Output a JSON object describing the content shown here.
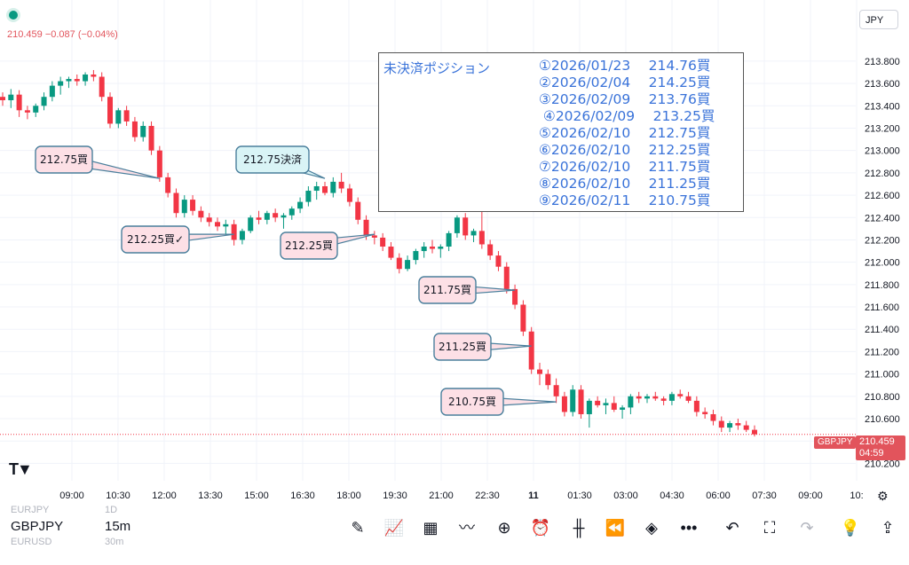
{
  "header": {
    "legend": "210.459 −0.087 (−0.04%)",
    "currency": "JPY"
  },
  "price_tag": {
    "symbol": "GBPJPY",
    "price": "210.459",
    "countdown": "04:59"
  },
  "positions_box": {
    "title": "未決済ポジション",
    "rows": [
      "①2026/01/23　 214.76買",
      "②2026/02/04　 214.25買",
      "③2026/02/09　 213.76買",
      " ④2026/02/09　 213.25買",
      "⑤2026/02/10　 212.75買",
      "⑥2026/02/10　 212.25買",
      "⑦2026/02/10　 211.75買",
      "⑧2026/02/10　 211.25買",
      "⑨2026/02/11　 210.75買"
    ]
  },
  "bottom_bar": {
    "rows": [
      {
        "symbol": "EURJPY",
        "interval": "1D",
        "faint": true
      },
      {
        "symbol": "GBPJPY",
        "interval": "15m",
        "faint": false
      },
      {
        "symbol": "EURUSD",
        "interval": "30m",
        "faint": true
      }
    ],
    "toolbar_icons": [
      "pen-icon",
      "indicators-icon",
      "templates-icon",
      "compare-icon",
      "plus-icon",
      "alert-icon",
      "candles-icon",
      "replay-icon",
      "layers-icon",
      "more-icon",
      "undo-icon",
      "fullscreen-icon",
      "redo-icon",
      "lightbulb-icon",
      "share-icon"
    ]
  },
  "chart_data": {
    "type": "candlestick",
    "symbol": "GBPJPY",
    "timeframe": "15m",
    "y_ticks": [
      "213.800",
      "213.600",
      "213.400",
      "213.200",
      "213.000",
      "212.800",
      "212.600",
      "212.400",
      "212.200",
      "212.000",
      "211.800",
      "211.600",
      "211.400",
      "211.200",
      "211.000",
      "210.800",
      "210.600",
      "210.400",
      "210.200"
    ],
    "x_ticks": [
      "09:00",
      "10:30",
      "12:00",
      "13:30",
      "15:00",
      "16:30",
      "18:00",
      "19:30",
      "21:00",
      "22:30",
      "11",
      "01:30",
      "03:00",
      "04:30",
      "06:00",
      "07:30",
      "09:00",
      "10:"
    ],
    "ylim": [
      210.1,
      213.95
    ],
    "current_price": 210.459,
    "up_color": "#089981",
    "down_color": "#f23645",
    "candles": [
      [
        213.48,
        213.52,
        213.4,
        213.45
      ],
      [
        213.45,
        213.55,
        213.38,
        213.5
      ],
      [
        213.5,
        213.54,
        213.3,
        213.36
      ],
      [
        213.36,
        213.4,
        213.28,
        213.34
      ],
      [
        213.34,
        213.42,
        213.3,
        213.4
      ],
      [
        213.4,
        213.52,
        213.36,
        213.48
      ],
      [
        213.48,
        213.62,
        213.44,
        213.58
      ],
      [
        213.58,
        213.66,
        213.5,
        213.62
      ],
      [
        213.62,
        213.66,
        213.56,
        213.64
      ],
      [
        213.64,
        213.68,
        213.58,
        213.62
      ],
      [
        213.62,
        213.7,
        213.58,
        213.68
      ],
      [
        213.68,
        213.72,
        213.62,
        213.66
      ],
      [
        213.66,
        213.7,
        213.44,
        213.48
      ],
      [
        213.48,
        213.52,
        213.2,
        213.24
      ],
      [
        213.24,
        213.38,
        213.2,
        213.36
      ],
      [
        213.36,
        213.4,
        213.22,
        213.26
      ],
      [
        213.26,
        213.3,
        213.08,
        213.12
      ],
      [
        213.12,
        213.26,
        213.08,
        213.22
      ],
      [
        213.22,
        213.26,
        212.96,
        213.0
      ],
      [
        213.0,
        213.04,
        212.72,
        212.76
      ],
      [
        212.76,
        212.8,
        212.58,
        212.62
      ],
      [
        212.62,
        212.66,
        212.4,
        212.44
      ],
      [
        212.44,
        212.6,
        212.4,
        212.56
      ],
      [
        212.56,
        212.6,
        212.42,
        212.46
      ],
      [
        212.46,
        212.5,
        212.36,
        212.4
      ],
      [
        212.4,
        212.44,
        212.32,
        212.36
      ],
      [
        212.36,
        212.4,
        212.28,
        212.32
      ],
      [
        212.32,
        212.38,
        212.24,
        212.34
      ],
      [
        212.34,
        212.38,
        212.15,
        212.2
      ],
      [
        212.2,
        212.3,
        212.16,
        212.28
      ],
      [
        212.28,
        212.42,
        212.26,
        212.4
      ],
      [
        212.4,
        212.46,
        212.34,
        212.38
      ],
      [
        212.38,
        212.46,
        212.34,
        212.44
      ],
      [
        212.44,
        212.48,
        212.36,
        212.4
      ],
      [
        212.4,
        212.44,
        212.3,
        212.42
      ],
      [
        212.42,
        212.5,
        212.38,
        212.48
      ],
      [
        212.48,
        212.58,
        212.44,
        212.54
      ],
      [
        212.54,
        212.68,
        212.5,
        212.64
      ],
      [
        212.64,
        212.72,
        212.56,
        212.68
      ],
      [
        212.68,
        212.72,
        212.6,
        212.62
      ],
      [
        212.62,
        212.76,
        212.58,
        212.72
      ],
      [
        212.72,
        212.8,
        212.62,
        212.66
      ],
      [
        212.66,
        212.7,
        212.5,
        212.54
      ],
      [
        212.54,
        212.58,
        212.34,
        212.38
      ],
      [
        212.38,
        212.42,
        212.2,
        212.24
      ],
      [
        212.24,
        212.28,
        212.16,
        212.22
      ],
      [
        212.22,
        212.26,
        212.1,
        212.14
      ],
      [
        212.14,
        212.18,
        212.02,
        212.04
      ],
      [
        212.04,
        212.08,
        211.9,
        211.94
      ],
      [
        211.94,
        212.06,
        211.92,
        212.02
      ],
      [
        212.02,
        212.12,
        211.98,
        212.1
      ],
      [
        212.1,
        212.18,
        212.04,
        212.14
      ],
      [
        212.14,
        212.2,
        212.08,
        212.12
      ],
      [
        212.12,
        212.16,
        212.04,
        212.14
      ],
      [
        212.14,
        212.28,
        212.1,
        212.26
      ],
      [
        212.26,
        212.42,
        212.22,
        212.4
      ],
      [
        212.4,
        212.44,
        212.2,
        212.24
      ],
      [
        212.24,
        212.3,
        212.18,
        212.28
      ],
      [
        212.28,
        212.48,
        212.12,
        212.16
      ],
      [
        212.16,
        212.2,
        212.02,
        212.06
      ],
      [
        212.06,
        212.1,
        211.92,
        211.96
      ],
      [
        211.96,
        212.0,
        211.72,
        211.76
      ],
      [
        211.76,
        211.8,
        211.58,
        211.62
      ],
      [
        211.62,
        211.66,
        211.34,
        211.38
      ],
      [
        211.38,
        211.42,
        211.0,
        211.04
      ],
      [
        211.04,
        211.1,
        210.9,
        211.0
      ],
      [
        211.0,
        211.04,
        210.86,
        210.9
      ],
      [
        210.9,
        210.96,
        210.74,
        210.8
      ],
      [
        210.8,
        210.84,
        210.62,
        210.66
      ],
      [
        210.66,
        210.9,
        210.62,
        210.86
      ],
      [
        210.86,
        210.9,
        210.6,
        210.64
      ],
      [
        210.64,
        210.78,
        210.52,
        210.76
      ],
      [
        210.76,
        210.8,
        210.7,
        210.72
      ],
      [
        210.72,
        210.78,
        210.64,
        210.74
      ],
      [
        210.74,
        210.8,
        210.66,
        210.68
      ],
      [
        210.68,
        210.72,
        210.6,
        210.7
      ],
      [
        210.7,
        210.82,
        210.64,
        210.8
      ],
      [
        210.8,
        210.84,
        210.74,
        210.78
      ],
      [
        210.78,
        210.82,
        210.74,
        210.8
      ],
      [
        210.8,
        210.84,
        210.76,
        210.78
      ],
      [
        210.78,
        210.8,
        210.72,
        210.76
      ],
      [
        210.76,
        210.84,
        210.72,
        210.82
      ],
      [
        210.82,
        210.86,
        210.78,
        210.8
      ],
      [
        210.8,
        210.84,
        210.74,
        210.76
      ],
      [
        210.76,
        210.8,
        210.62,
        210.66
      ],
      [
        210.66,
        210.7,
        210.6,
        210.64
      ],
      [
        210.64,
        210.68,
        210.54,
        210.58
      ],
      [
        210.58,
        210.62,
        210.48,
        210.52
      ],
      [
        210.52,
        210.58,
        210.48,
        210.56
      ],
      [
        210.56,
        210.6,
        210.5,
        210.54
      ],
      [
        210.54,
        210.58,
        210.48,
        210.5
      ],
      [
        210.5,
        210.54,
        210.44,
        210.46
      ]
    ],
    "annotations": [
      {
        "text": "212.75買",
        "price": 212.75,
        "candle": 19,
        "style": "pink"
      },
      {
        "text": "212.25買✓",
        "price": 212.25,
        "candle": 28,
        "style": "pink"
      },
      {
        "text": "212.75決済",
        "price": 212.75,
        "candle": 39,
        "style": "cyan"
      },
      {
        "text": "212.25買",
        "price": 212.25,
        "candle": 45,
        "style": "pink"
      },
      {
        "text": "211.75買",
        "price": 211.75,
        "candle": 62,
        "style": "pink"
      },
      {
        "text": "211.25買",
        "price": 211.25,
        "candle": 64,
        "style": "pink"
      },
      {
        "text": "210.75買",
        "price": 210.75,
        "candle": 67,
        "style": "pink"
      }
    ]
  }
}
